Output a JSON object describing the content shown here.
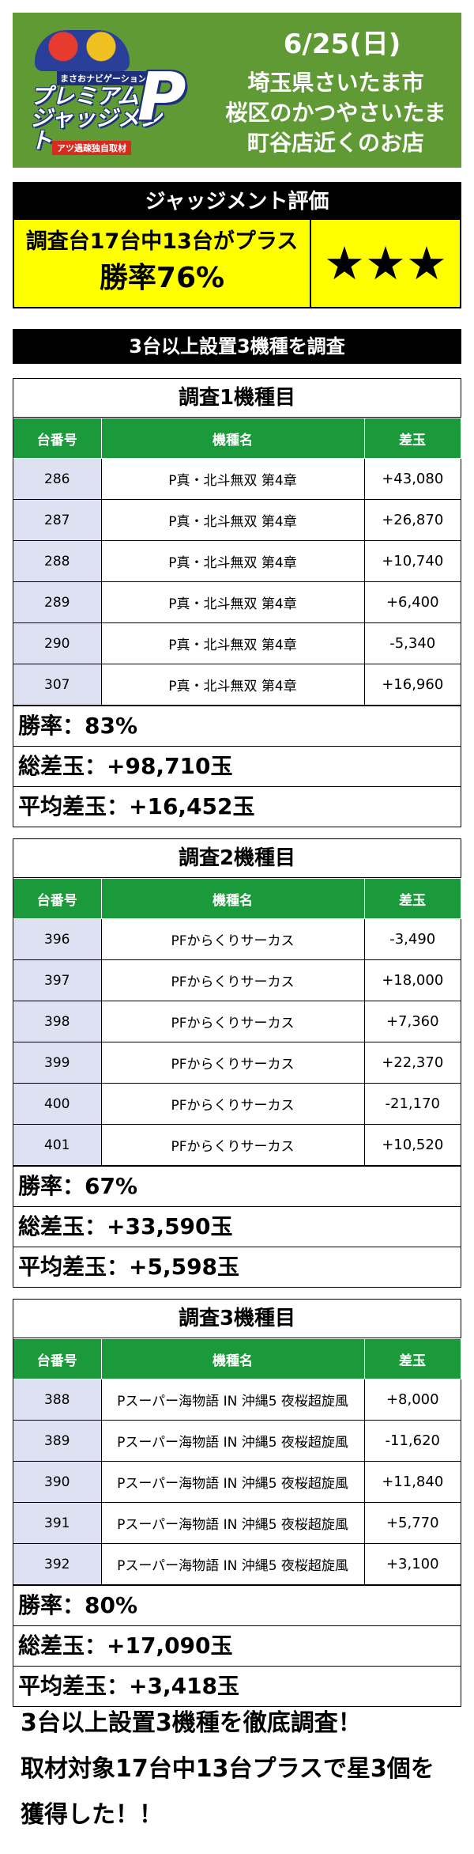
{
  "header": {
    "date": "6/25(日)",
    "location_lines": [
      "埼玉県さいたま市",
      "桜区のかつやさいたま",
      "町谷店近くのお店"
    ],
    "logo": {
      "subtitle": "まさおナビゲーション",
      "title_lines": [
        "プレミアム",
        "ジャッジメント"
      ],
      "letter": "P",
      "tagline": "アツ過疎独自取材"
    }
  },
  "judgment": {
    "heading": "ジャッジメント評価",
    "line1": "調査台17台中13台がプラス",
    "line2": "勝率76%",
    "stars": "★★★"
  },
  "section_title": "3台以上設置3機種を調査",
  "columns": [
    "台番号",
    "機種名",
    "差玉"
  ],
  "surveys": [
    {
      "title": "調査1機種目",
      "rows": [
        {
          "no": "286",
          "name": "P真・北斗無双 第4章",
          "diff": "+43,080"
        },
        {
          "no": "287",
          "name": "P真・北斗無双 第4章",
          "diff": "+26,870"
        },
        {
          "no": "288",
          "name": "P真・北斗無双 第4章",
          "diff": "+10,740"
        },
        {
          "no": "289",
          "name": "P真・北斗無双 第4章",
          "diff": "+6,400"
        },
        {
          "no": "290",
          "name": "P真・北斗無双 第4章",
          "diff": "-5,340"
        },
        {
          "no": "307",
          "name": "P真・北斗無双 第4章",
          "diff": "+16,960"
        }
      ],
      "win_rate": "勝率：83%",
      "total": "総差玉：+98,710玉",
      "average": "平均差玉：+16,452玉"
    },
    {
      "title": "調査2機種目",
      "rows": [
        {
          "no": "396",
          "name": "PFからくりサーカス",
          "diff": "-3,490"
        },
        {
          "no": "397",
          "name": "PFからくりサーカス",
          "diff": "+18,000"
        },
        {
          "no": "398",
          "name": "PFからくりサーカス",
          "diff": "+7,360"
        },
        {
          "no": "399",
          "name": "PFからくりサーカス",
          "diff": "+22,370"
        },
        {
          "no": "400",
          "name": "PFからくりサーカス",
          "diff": "-21,170"
        },
        {
          "no": "401",
          "name": "PFからくりサーカス",
          "diff": "+10,520"
        }
      ],
      "win_rate": "勝率：67%",
      "total": "総差玉：+33,590玉",
      "average": "平均差玉：+5,598玉"
    },
    {
      "title": "調査3機種目",
      "rows": [
        {
          "no": "388",
          "name": "Pスーパー海物語 IN 沖縄5 夜桜超旋風",
          "diff": "+8,000"
        },
        {
          "no": "389",
          "name": "Pスーパー海物語 IN 沖縄5 夜桜超旋風",
          "diff": "-11,620"
        },
        {
          "no": "390",
          "name": "Pスーパー海物語 IN 沖縄5 夜桜超旋風",
          "diff": "+11,840"
        },
        {
          "no": "391",
          "name": "Pスーパー海物語 IN 沖縄5 夜桜超旋風",
          "diff": "+5,770"
        },
        {
          "no": "392",
          "name": "Pスーパー海物語 IN 沖縄5 夜桜超旋風",
          "diff": "+3,100"
        }
      ],
      "win_rate": "勝率：80%",
      "total": "総差玉：+17,090玉",
      "average": "平均差玉：+3,418玉"
    }
  ],
  "footer_lines": [
    "3台以上設置3機種を徹底調査！",
    "取材対象17台中13台プラスで星3個を",
    "獲得した！！"
  ],
  "colors": {
    "header_green": "#5f9a35",
    "table_header_green": "#1a9a3a",
    "number_cell": "#dde1f1",
    "judgment_yellow": "#ffff00"
  }
}
